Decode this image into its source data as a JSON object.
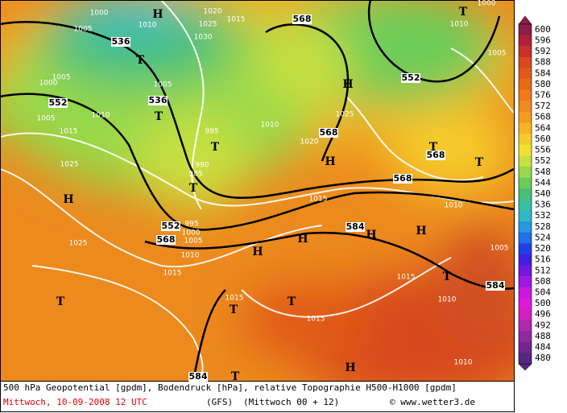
{
  "map": {
    "height_labels": [
      "536",
      "552",
      "536",
      "568",
      "552",
      "568",
      "568",
      "568",
      "552",
      "568",
      "584",
      "584",
      "584"
    ],
    "pressure_labels": [
      "1000",
      "1005",
      "1010",
      "1020",
      "1025",
      "1030",
      "1015",
      "1005",
      "1000",
      "1005",
      "1010",
      "1005",
      "1015",
      "995",
      "1010",
      "1020",
      "1025",
      "990",
      "985",
      "1025",
      "1015",
      "1010",
      "1025",
      "995",
      "1000",
      "1005",
      "1010",
      "1015",
      "1005",
      "1015",
      "1010",
      "1015",
      "1015",
      "1010",
      "1005",
      "1000",
      "1010"
    ],
    "centers": [
      "H",
      "T",
      "T",
      "T",
      "T",
      "H",
      "H",
      "T",
      "T",
      "H",
      "H",
      "H",
      "H",
      "H",
      "T",
      "T",
      "T",
      "T",
      "H",
      "T",
      "T"
    ]
  },
  "colorbar": {
    "ticks": [
      600,
      596,
      592,
      588,
      584,
      580,
      576,
      572,
      568,
      564,
      560,
      556,
      552,
      548,
      544,
      540,
      536,
      532,
      528,
      524,
      520,
      516,
      512,
      508,
      504,
      500,
      496,
      492,
      488,
      484,
      480
    ],
    "colors": [
      "#8b1e4a",
      "#b0203a",
      "#c8302a",
      "#d84a1e",
      "#e05a18",
      "#e86a18",
      "#ee7a1a",
      "#f08a1c",
      "#f29c20",
      "#f4b424",
      "#f6cc2a",
      "#f2e030",
      "#c8e040",
      "#98d84a",
      "#6ccc58",
      "#48c078",
      "#38c0a0",
      "#30b8c8",
      "#2898e0",
      "#2070e8",
      "#2040e8",
      "#4020e0",
      "#7018e0",
      "#a018e0",
      "#c818e0",
      "#e018d8",
      "#d020c0",
      "#b028b0",
      "#9028a0",
      "#702890",
      "#582880"
    ]
  },
  "footer": {
    "description": "500 hPa Geopotential [gpdm], Bodendruck [hPa], relative Topographie H500-H1000 [gpdm]",
    "date": "Mittwoch, 10-09-2008  12 UTC",
    "model": "(GFS)",
    "run": "(Mittwoch 00 + 12)",
    "credit": "© www.wetter3.de"
  }
}
